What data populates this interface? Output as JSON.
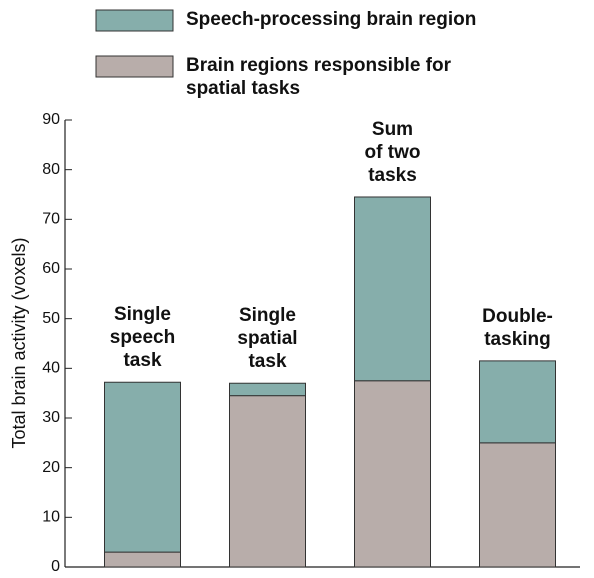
{
  "chart_data": {
    "type": "stacked_bar",
    "y_label": "Total brain activity (voxels)",
    "categories": [
      "Single\nspeech\ntask",
      "Single\nspatial\ntask",
      "Sum\nof two\ntasks",
      "Double-\ntasking"
    ],
    "series": [
      {
        "name": "Speech-processing brain region",
        "color": "#86aeab",
        "values": [
          34.2,
          2.5,
          37,
          16.5
        ]
      },
      {
        "name": "Brain regions responsible for\nspatial tasks",
        "color": "#b8adaa",
        "values": [
          3,
          34.5,
          37.5,
          25
        ]
      }
    ],
    "ylim": [
      0,
      90
    ],
    "yticks": [
      0,
      10,
      20,
      30,
      40,
      50,
      60,
      70,
      80,
      90
    ]
  }
}
